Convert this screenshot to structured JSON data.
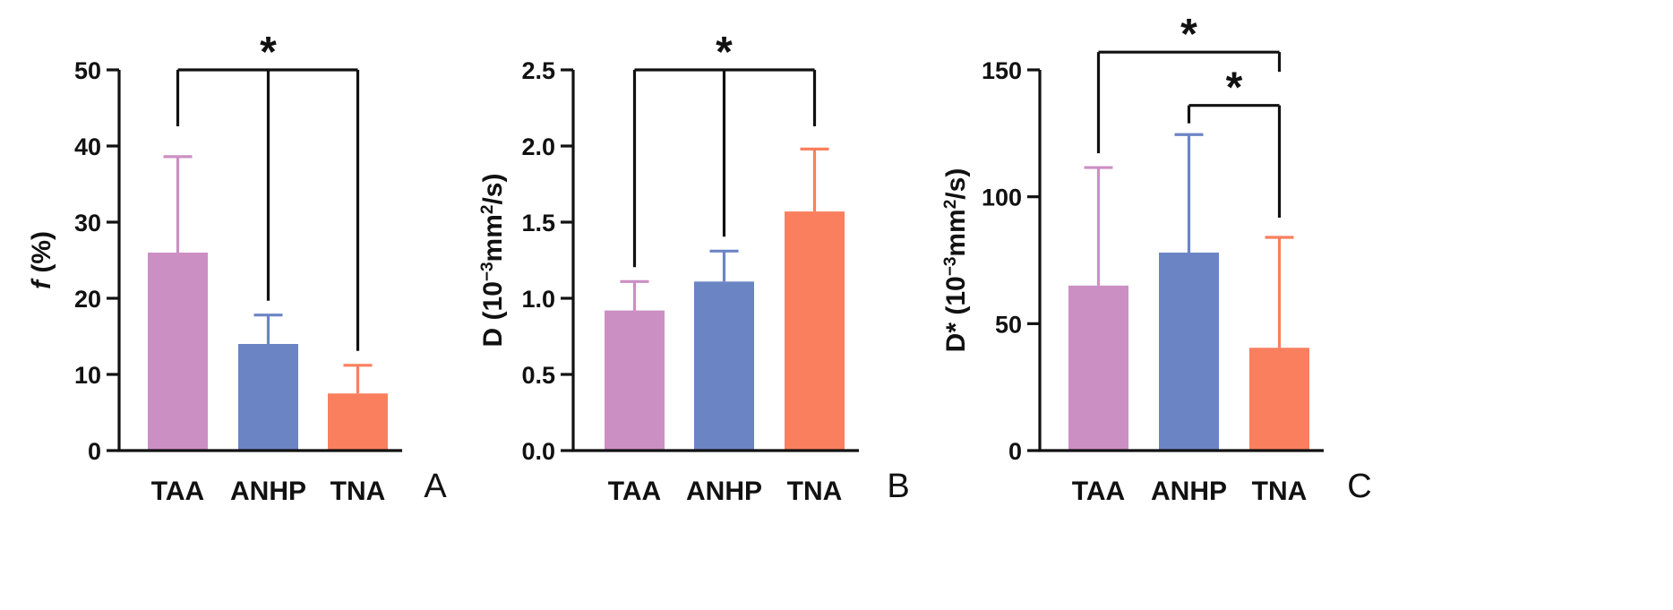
{
  "chart_data": [
    {
      "type": "bar",
      "panel_label": "A",
      "title": "",
      "xlabel": "",
      "ylabel": "f (%)",
      "ylabel_parts": [
        {
          "text": "f",
          "style": "italic"
        },
        {
          "text": " (%)",
          "style": "normal"
        }
      ],
      "ylim": [
        0,
        50
      ],
      "yticks": [
        0,
        10,
        20,
        30,
        40,
        50
      ],
      "ytick_labels": [
        "0",
        "10",
        "20",
        "30",
        "40",
        "50"
      ],
      "categories": [
        "TAA",
        "ANHP",
        "TNA"
      ],
      "values": [
        26,
        14,
        7.5
      ],
      "errors": [
        12.6,
        3.8,
        3.7
      ],
      "colors": [
        "#cc8fc4",
        "#6b85c4",
        "#fa7f5e"
      ],
      "significance": [
        {
          "type": "split",
          "from": 0,
          "to": [
            1,
            2
          ],
          "level_value": 50,
          "label": "*"
        }
      ]
    },
    {
      "type": "bar",
      "panel_label": "B",
      "title": "",
      "xlabel": "",
      "ylabel": "D (10⁻³mm²/s)",
      "ylabel_parts": [
        {
          "text": "D (10",
          "style": "normal"
        },
        {
          "text": "−3",
          "style": "sup"
        },
        {
          "text": "mm",
          "style": "normal"
        },
        {
          "text": "2",
          "style": "sup"
        },
        {
          "text": "/s)",
          "style": "normal"
        }
      ],
      "ylim": [
        0,
        2.5
      ],
      "yticks": [
        0,
        0.5,
        1.0,
        1.5,
        2.0,
        2.5
      ],
      "ytick_labels": [
        "0.0",
        "0.5",
        "1.0",
        "1.5",
        "2.0",
        "2.5"
      ],
      "categories": [
        "TAA",
        "ANHP",
        "TNA"
      ],
      "values": [
        0.92,
        1.11,
        1.57
      ],
      "errors": [
        0.19,
        0.2,
        0.41
      ],
      "colors": [
        "#cc8fc4",
        "#6b85c4",
        "#fa7f5e"
      ],
      "significance": [
        {
          "type": "split",
          "from": 2,
          "to": [
            0,
            1
          ],
          "level_value": 2.5,
          "label": "*"
        }
      ]
    },
    {
      "type": "bar",
      "panel_label": "C",
      "title": "",
      "xlabel": "",
      "ylabel": "D* (10⁻³mm²/s)",
      "ylabel_parts": [
        {
          "text": "D* (10",
          "style": "normal"
        },
        {
          "text": "−3",
          "style": "sup"
        },
        {
          "text": "mm",
          "style": "normal"
        },
        {
          "text": "2",
          "style": "sup"
        },
        {
          "text": "/s)",
          "style": "normal"
        }
      ],
      "ylim": [
        0,
        150
      ],
      "yticks": [
        0,
        50,
        100,
        150
      ],
      "ytick_labels": [
        "0",
        "50",
        "100",
        "150"
      ],
      "categories": [
        "TAA",
        "ANHP",
        "TNA"
      ],
      "values": [
        65,
        78,
        40.5
      ],
      "errors": [
        46.5,
        46.5,
        43.5
      ],
      "colors": [
        "#cc8fc4",
        "#6b85c4",
        "#fa7f5e"
      ],
      "significance": [
        {
          "type": "pair",
          "a": 0,
          "b": 2,
          "level_value": 157,
          "label": "*"
        },
        {
          "type": "pair",
          "a": 1,
          "b": 2,
          "level_value": 136,
          "label": "*"
        }
      ]
    }
  ]
}
